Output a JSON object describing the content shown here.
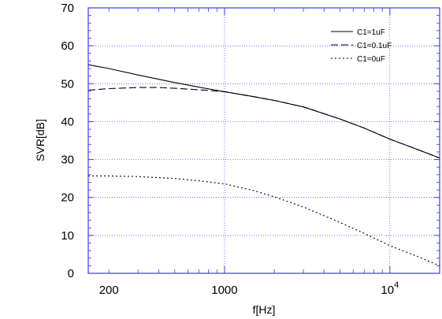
{
  "chart_data": {
    "type": "line",
    "title": "",
    "xlabel": "f[Hz]",
    "ylabel": "SVR[dB]",
    "x_scale": "log",
    "xlim": [
      150,
      20000
    ],
    "ylim": [
      0,
      70
    ],
    "x_ticks": [
      {
        "value": 200,
        "label": "200",
        "exp": ""
      },
      {
        "value": 1000,
        "label": "1000",
        "exp": ""
      },
      {
        "value": 10000,
        "label": "10",
        "exp": "4"
      }
    ],
    "y_ticks": [
      0,
      10,
      20,
      30,
      40,
      50,
      60,
      70
    ],
    "grid": true,
    "grid_color": "#3a3aff",
    "legend_position": "top-right",
    "series": [
      {
        "name": "C1=1uF",
        "dash": "solid",
        "x": [
          150,
          200,
          300,
          500,
          700,
          1000,
          1500,
          2000,
          3000,
          5000,
          7000,
          10000,
          15000,
          20000
        ],
        "y": [
          55,
          54,
          52.3,
          50.3,
          49.1,
          47.9,
          46.6,
          45.6,
          43.9,
          40.7,
          38.3,
          35.4,
          32.5,
          30.4
        ]
      },
      {
        "name": "C1=0.1uF",
        "dash": "dashed",
        "x": [
          150,
          200,
          300,
          400,
          500,
          700,
          1000,
          1500,
          2000,
          3000,
          5000,
          7000,
          10000,
          15000,
          20000
        ],
        "y": [
          48.3,
          48.7,
          49,
          49,
          48.8,
          48.4,
          47.9,
          46.6,
          45.6,
          43.9,
          40.7,
          38.3,
          35.4,
          32.5,
          30.4
        ]
      },
      {
        "name": "C1=0uF",
        "dash": "dotted",
        "x": [
          150,
          200,
          300,
          500,
          700,
          1000,
          1500,
          2000,
          3000,
          5000,
          7000,
          10000,
          15000,
          20000
        ],
        "y": [
          25.7,
          25.7,
          25.5,
          25,
          24.4,
          23.6,
          21.8,
          20.2,
          17.5,
          13.4,
          10.5,
          7.3,
          4.3,
          2
        ]
      }
    ]
  }
}
